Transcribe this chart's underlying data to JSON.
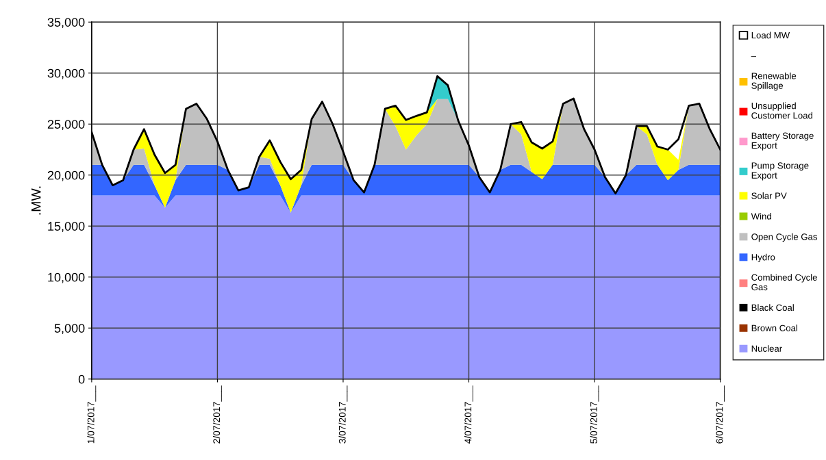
{
  "chart_data": {
    "type": "area",
    "stacked": true,
    "ylabel": ".MW.",
    "x": [
      "2017-07-01T00:00",
      "2017-07-01T02:00",
      "2017-07-01T04:00",
      "2017-07-01T06:00",
      "2017-07-01T08:00",
      "2017-07-01T10:00",
      "2017-07-01T12:00",
      "2017-07-01T14:00",
      "2017-07-01T16:00",
      "2017-07-01T18:00",
      "2017-07-01T20:00",
      "2017-07-01T22:00",
      "2017-07-02T00:00",
      "2017-07-02T02:00",
      "2017-07-02T04:00",
      "2017-07-02T06:00",
      "2017-07-02T08:00",
      "2017-07-02T10:00",
      "2017-07-02T12:00",
      "2017-07-02T14:00",
      "2017-07-02T16:00",
      "2017-07-02T18:00",
      "2017-07-02T20:00",
      "2017-07-02T22:00",
      "2017-07-03T00:00",
      "2017-07-03T02:00",
      "2017-07-03T04:00",
      "2017-07-03T06:00",
      "2017-07-03T08:00",
      "2017-07-03T10:00",
      "2017-07-03T12:00",
      "2017-07-03T14:00",
      "2017-07-03T16:00",
      "2017-07-03T18:00",
      "2017-07-03T20:00",
      "2017-07-03T22:00",
      "2017-07-04T00:00",
      "2017-07-04T02:00",
      "2017-07-04T04:00",
      "2017-07-04T06:00",
      "2017-07-04T08:00",
      "2017-07-04T10:00",
      "2017-07-04T12:00",
      "2017-07-04T14:00",
      "2017-07-04T16:00",
      "2017-07-04T18:00",
      "2017-07-04T20:00",
      "2017-07-04T22:00",
      "2017-07-05T00:00",
      "2017-07-05T02:00",
      "2017-07-05T04:00",
      "2017-07-05T06:00",
      "2017-07-05T08:00",
      "2017-07-05T10:00",
      "2017-07-05T12:00",
      "2017-07-05T14:00",
      "2017-07-05T16:00",
      "2017-07-05T18:00",
      "2017-07-05T20:00",
      "2017-07-05T22:00",
      "2017-07-06T00:00"
    ],
    "xlim": [
      "2017-07-01",
      "2017-07-06"
    ],
    "xticks": [
      {
        "value": "2017-07-01",
        "label": "1/07/2017___"
      },
      {
        "value": "2017-07-02",
        "label": "2/07/2017___"
      },
      {
        "value": "2017-07-03",
        "label": "3/07/2017___"
      },
      {
        "value": "2017-07-04",
        "label": "4/07/2017___"
      },
      {
        "value": "2017-07-05",
        "label": "5/07/2017___"
      },
      {
        "value": "2017-07-06",
        "label": "6/07/2017___"
      }
    ],
    "ylim": [
      0,
      35000
    ],
    "yticks": [
      {
        "value": 0,
        "label": "0"
      },
      {
        "value": 5000,
        "label": "5,000"
      },
      {
        "value": 10000,
        "label": "10,000"
      },
      {
        "value": 15000,
        "label": "15,000"
      },
      {
        "value": 20000,
        "label": "20,000"
      },
      {
        "value": 25000,
        "label": "25,000"
      },
      {
        "value": 30000,
        "label": "30,000"
      },
      {
        "value": 35000,
        "label": "35,000"
      }
    ],
    "grid": true,
    "legend": "right",
    "annotations": [
      "–"
    ],
    "series": [
      {
        "name": "Nuclear",
        "color": "#9999ff",
        "values": [
          18000,
          18000,
          18000,
          18000,
          18000,
          18000,
          18000,
          16800,
          18000,
          18000,
          18000,
          18000,
          18000,
          18000,
          18000,
          18000,
          18000,
          18000,
          18000,
          16300,
          18000,
          18000,
          18000,
          18000,
          18000,
          18000,
          18000,
          18000,
          18000,
          18000,
          18000,
          18000,
          18000,
          18000,
          18000,
          18000,
          18000,
          18000,
          18000,
          18000,
          18000,
          18000,
          18000,
          18000,
          18000,
          18000,
          18000,
          18000,
          18000,
          18000,
          18000,
          18000,
          18000,
          18000,
          18000,
          18000,
          18000,
          18000,
          18000,
          18000,
          18000
        ]
      },
      {
        "name": "Brown Coal",
        "color": "#993300",
        "values": [
          null,
          null,
          null,
          null,
          null,
          null,
          null,
          null,
          null,
          null,
          null,
          null,
          null,
          null,
          null,
          null,
          null,
          null,
          null,
          null,
          null,
          null,
          null,
          null,
          null,
          null,
          null,
          null,
          null,
          null,
          null,
          null,
          null,
          null,
          null,
          null,
          null,
          null,
          null,
          null,
          null,
          null,
          null,
          null,
          null,
          null,
          null,
          null,
          null,
          null,
          null,
          null,
          null,
          null,
          null,
          null,
          null,
          null,
          null,
          null,
          null
        ]
      },
      {
        "name": "Black Coal",
        "color": "#000000",
        "values": [
          null,
          null,
          null,
          null,
          null,
          null,
          null,
          null,
          null,
          null,
          null,
          null,
          null,
          null,
          null,
          null,
          null,
          null,
          null,
          null,
          null,
          null,
          null,
          null,
          null,
          null,
          null,
          null,
          null,
          null,
          null,
          null,
          null,
          null,
          null,
          null,
          null,
          null,
          null,
          null,
          null,
          null,
          null,
          null,
          null,
          null,
          null,
          null,
          null,
          null,
          null,
          null,
          null,
          null,
          null,
          null,
          null,
          null,
          null,
          null,
          null
        ]
      },
      {
        "name": "Combined Cycle\nGas",
        "color": "#ff8080",
        "values": [
          null,
          null,
          null,
          null,
          null,
          null,
          null,
          null,
          null,
          null,
          null,
          null,
          null,
          null,
          null,
          null,
          null,
          null,
          null,
          null,
          null,
          null,
          null,
          null,
          null,
          null,
          null,
          null,
          null,
          null,
          null,
          null,
          null,
          null,
          null,
          null,
          null,
          null,
          null,
          null,
          null,
          null,
          null,
          null,
          null,
          null,
          null,
          null,
          null,
          null,
          null,
          null,
          null,
          null,
          null,
          null,
          null,
          null,
          null,
          null,
          null
        ]
      },
      {
        "name": "Hydro",
        "color": "#3366ff",
        "values": [
          3000,
          3000,
          1000,
          1500,
          3000,
          3000,
          1000,
          0,
          1500,
          3000,
          3000,
          3000,
          3000,
          2500,
          500,
          800,
          3000,
          3000,
          1000,
          0,
          1000,
          3000,
          3000,
          3000,
          3000,
          1500,
          300,
          3000,
          3000,
          3000,
          3000,
          3000,
          3000,
          3000,
          3000,
          3000,
          3000,
          1800,
          300,
          2500,
          3000,
          3000,
          2300,
          1600,
          3000,
          3000,
          3000,
          3000,
          3000,
          1800,
          200,
          2000,
          3000,
          3000,
          3000,
          1500,
          2500,
          3000,
          3000,
          3000,
          3000
        ]
      },
      {
        "name": "Open Cycle Gas",
        "color": "#c0c0c0",
        "values": [
          3200,
          0,
          0,
          0,
          1500,
          1600,
          0,
          0,
          0,
          5500,
          6000,
          4500,
          2300,
          0,
          0,
          0,
          800,
          600,
          0,
          0,
          0,
          4500,
          6200,
          4000,
          1300,
          0,
          0,
          0,
          5500,
          3800,
          1500,
          2900,
          4000,
          6450,
          6450,
          4300,
          1900,
          0,
          0,
          0,
          4000,
          3000,
          0,
          0,
          0,
          6000,
          6500,
          3500,
          1500,
          0,
          0,
          0,
          3800,
          3000,
          0,
          0,
          0,
          5800,
          6000,
          3500,
          1500
        ]
      },
      {
        "name": "Wind",
        "color": "#99cc00",
        "values": [
          null,
          null,
          null,
          null,
          null,
          null,
          null,
          null,
          null,
          null,
          null,
          null,
          null,
          null,
          null,
          null,
          null,
          null,
          null,
          null,
          null,
          null,
          null,
          null,
          null,
          null,
          null,
          null,
          null,
          null,
          null,
          null,
          null,
          null,
          null,
          null,
          null,
          null,
          null,
          null,
          null,
          null,
          null,
          null,
          null,
          null,
          null,
          null,
          null,
          null,
          null,
          null,
          null,
          null,
          null,
          null,
          null,
          null,
          null,
          null,
          null
        ]
      },
      {
        "name": "Solar PV",
        "color": "#ffff00",
        "values": [
          null,
          null,
          null,
          null,
          0,
          1900,
          3000,
          3400,
          1500,
          0,
          null,
          null,
          null,
          null,
          null,
          null,
          0,
          1800,
          2300,
          3300,
          1500,
          0,
          null,
          null,
          null,
          null,
          null,
          null,
          0,
          2000,
          2900,
          1900,
          1150,
          0,
          null,
          null,
          null,
          null,
          null,
          null,
          0,
          1200,
          2900,
          3000,
          2300,
          0,
          null,
          null,
          null,
          null,
          null,
          null,
          0,
          800,
          1800,
          3000,
          1000,
          0,
          null,
          null,
          null
        ]
      },
      {
        "name": "Pump Storage\nExport",
        "color": "#33cccc",
        "values": [
          null,
          null,
          null,
          null,
          null,
          null,
          null,
          null,
          null,
          null,
          null,
          null,
          null,
          null,
          null,
          null,
          null,
          null,
          null,
          null,
          null,
          null,
          null,
          null,
          null,
          null,
          null,
          null,
          null,
          null,
          null,
          null,
          0,
          2250,
          1350,
          0,
          null,
          null,
          null,
          null,
          null,
          null,
          null,
          null,
          null,
          null,
          null,
          null,
          null,
          null,
          null,
          null,
          null,
          null,
          null,
          null,
          null,
          null,
          null,
          null,
          null
        ]
      },
      {
        "name": "Battery Storage\nExport",
        "color": "#ff99cc",
        "values": [
          null,
          null,
          null,
          null,
          null,
          null,
          null,
          null,
          null,
          null,
          null,
          null,
          null,
          null,
          null,
          null,
          null,
          null,
          null,
          null,
          null,
          null,
          null,
          null,
          null,
          null,
          null,
          null,
          null,
          null,
          null,
          null,
          null,
          null,
          null,
          null,
          null,
          null,
          null,
          null,
          null,
          null,
          null,
          null,
          null,
          null,
          null,
          null,
          null,
          null,
          null,
          null,
          null,
          null,
          null,
          null,
          null,
          null,
          null,
          null,
          null
        ]
      },
      {
        "name": "Unsupplied\nCustomer Load",
        "color": "#ff0000",
        "values": [
          null,
          null,
          null,
          null,
          null,
          null,
          null,
          null,
          null,
          null,
          null,
          null,
          null,
          null,
          null,
          null,
          null,
          null,
          null,
          null,
          null,
          null,
          null,
          null,
          null,
          null,
          null,
          null,
          null,
          null,
          null,
          null,
          null,
          null,
          null,
          null,
          null,
          null,
          null,
          null,
          null,
          null,
          null,
          null,
          null,
          null,
          null,
          null,
          null,
          null,
          null,
          null,
          null,
          null,
          null,
          null,
          null,
          null,
          null,
          null,
          null
        ]
      },
      {
        "name": "Renewable\nSpillage",
        "color": "#ffc000",
        "values": [
          null,
          null,
          null,
          null,
          null,
          null,
          null,
          null,
          null,
          null,
          null,
          null,
          null,
          null,
          null,
          null,
          null,
          null,
          null,
          null,
          null,
          null,
          null,
          null,
          null,
          null,
          null,
          null,
          null,
          null,
          null,
          null,
          null,
          null,
          null,
          null,
          null,
          null,
          null,
          null,
          null,
          null,
          null,
          null,
          null,
          null,
          null,
          null,
          null,
          null,
          null,
          null,
          null,
          null,
          null,
          null,
          null,
          null,
          null,
          null,
          null
        ]
      },
      {
        "name": "Load MW",
        "type": "line",
        "color": "#000000",
        "values": [
          24200,
          21000,
          19000,
          19500,
          22500,
          24500,
          22000,
          20200,
          21000,
          26500,
          27000,
          25500,
          23300,
          20500,
          18500,
          18800,
          21800,
          23400,
          21300,
          19600,
          20500,
          25500,
          27200,
          25000,
          22300,
          19500,
          18300,
          21000,
          26500,
          26800,
          25400,
          25800,
          26150,
          29700,
          28800,
          25300,
          22900,
          19800,
          18300,
          20500,
          25000,
          25200,
          23200,
          22600,
          23300,
          27000,
          27500,
          24500,
          22500,
          19800,
          18200,
          20000,
          24800,
          24800,
          22800,
          22500,
          23500,
          26800,
          27000,
          24500,
          22500
        ]
      }
    ]
  }
}
